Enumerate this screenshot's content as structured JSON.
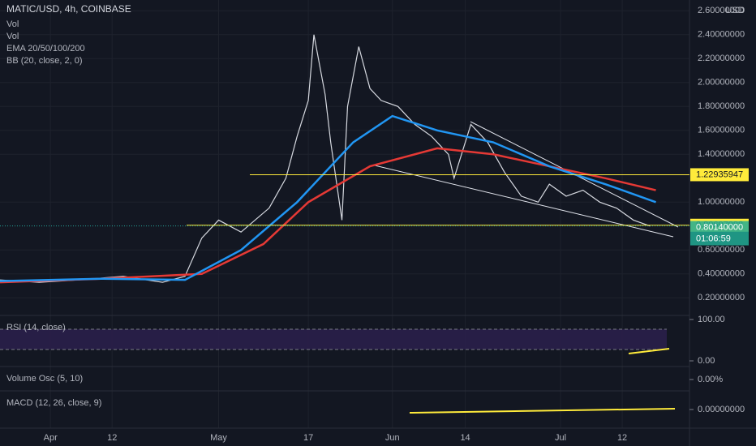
{
  "chart_data": {
    "type": "line",
    "title": "MATIC/USD, 4h, COINBASE",
    "legend_items": [
      "Vol",
      "Vol",
      "EMA 20/50/100/200",
      "BB (20, close, 2, 0)"
    ],
    "currency": "USD",
    "xlim": [
      82,
      205
    ],
    "xticks": [
      {
        "value": 91,
        "label": "Apr"
      },
      {
        "value": 102,
        "label": "12"
      },
      {
        "value": 121,
        "label": "May"
      },
      {
        "value": 137,
        "label": "17"
      },
      {
        "value": 152,
        "label": "Jun"
      },
      {
        "value": 165,
        "label": "14"
      },
      {
        "value": 182,
        "label": "Jul"
      },
      {
        "value": 193,
        "label": "12"
      }
    ],
    "ylim": [
      0.08,
      2.69
    ],
    "yticks": [
      {
        "value": 0.2,
        "label": "0.20000000"
      },
      {
        "value": 0.4,
        "label": "0.40000000"
      },
      {
        "value": 0.6,
        "label": "0.60000000"
      },
      {
        "value": 1.0,
        "label": "1.00000000"
      },
      {
        "value": 1.4,
        "label": "1.40000000"
      },
      {
        "value": 1.6,
        "label": "1.60000000"
      },
      {
        "value": 1.8,
        "label": "1.80000000"
      },
      {
        "value": 2.0,
        "label": "2.00000000"
      },
      {
        "value": 2.2,
        "label": "2.20000000"
      },
      {
        "value": 2.4,
        "label": "2.40000000"
      },
      {
        "value": 2.6,
        "label": "2.60000000"
      }
    ],
    "series": [
      {
        "color": "#d6d9e0",
        "x": [
          82,
          89,
          96,
          104,
          111,
          115,
          118,
          121,
          125,
          130,
          133,
          135,
          137,
          138,
          140,
          141,
          143,
          144,
          146,
          148,
          150,
          153,
          156,
          159,
          162,
          163,
          166,
          169,
          172,
          175,
          178,
          180,
          183,
          186,
          189,
          192,
          195,
          198
        ],
        "values": [
          0.35,
          0.33,
          0.35,
          0.38,
          0.33,
          0.38,
          0.7,
          0.85,
          0.75,
          0.95,
          1.2,
          1.55,
          1.85,
          2.4,
          1.9,
          1.5,
          0.85,
          1.8,
          2.3,
          1.95,
          1.85,
          1.8,
          1.65,
          1.55,
          1.4,
          1.2,
          1.65,
          1.5,
          1.25,
          1.05,
          1.0,
          1.15,
          1.05,
          1.1,
          1.0,
          0.95,
          0.85,
          0.8
        ]
      },
      {
        "color": "#e53935",
        "x": [
          82,
          100,
          118,
          129,
          137,
          148,
          160,
          170,
          180,
          190,
          199
        ],
        "values": [
          0.33,
          0.36,
          0.4,
          0.65,
          1.0,
          1.3,
          1.45,
          1.4,
          1.3,
          1.2,
          1.1
        ]
      },
      {
        "color": "#2196f3",
        "x": [
          82,
          100,
          115,
          125,
          135,
          145,
          152,
          160,
          170,
          180,
          190,
          199
        ],
        "values": [
          0.34,
          0.36,
          0.35,
          0.6,
          1.0,
          1.5,
          1.72,
          1.6,
          1.5,
          1.3,
          1.15,
          1.0
        ]
      }
    ],
    "levels": [
      {
        "value": 1.22935947,
        "color": "#ffeb3b"
      },
      {
        "value": 0.80697988,
        "color": "#ffeb3b"
      }
    ],
    "last_price": {
      "value": 0.8014,
      "label": "0.80140000"
    },
    "countdown": "01:06:59",
    "indicators": [
      {
        "title": "RSI (14, close)",
        "ticks": [
          {
            "value": 100,
            "label": "100.00"
          },
          {
            "value": 0,
            "label": "0.00"
          }
        ]
      },
      {
        "title": "Volume Osc (5, 10)",
        "ticks": [
          {
            "value": 0,
            "label": "0.00%"
          }
        ]
      },
      {
        "title": "MACD (12, 26, close, 9)",
        "ticks": [
          {
            "value": 0,
            "label": "0.00000000"
          }
        ]
      }
    ]
  }
}
